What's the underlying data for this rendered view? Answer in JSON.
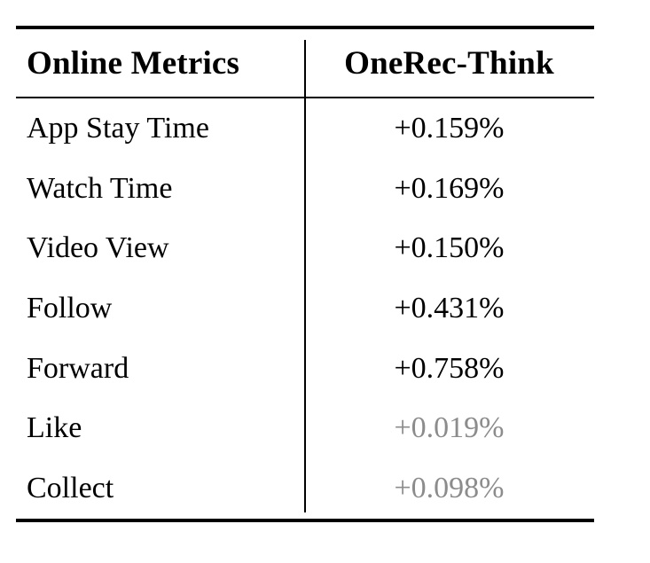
{
  "table": {
    "columns": [
      "Online Metrics",
      "OneRec-Think"
    ],
    "rows": [
      {
        "metric": "App Stay Time",
        "value": "+0.159%",
        "muted": false
      },
      {
        "metric": "Watch Time",
        "value": "+0.169%",
        "muted": false
      },
      {
        "metric": "Video View",
        "value": "+0.150%",
        "muted": false
      },
      {
        "metric": "Follow",
        "value": "+0.431%",
        "muted": false
      },
      {
        "metric": "Forward",
        "value": "+0.758%",
        "muted": false
      },
      {
        "metric": "Like",
        "value": "+0.019%",
        "muted": true
      },
      {
        "metric": "Collect",
        "value": "+0.098%",
        "muted": true
      }
    ]
  },
  "colors": {
    "text": "#000000",
    "muted_value": "#8c8c8c",
    "rule": "#000000",
    "background": "#ffffff"
  },
  "chart_data": {
    "type": "table",
    "columns": [
      "Online Metrics",
      "OneRec-Think"
    ],
    "rows": [
      [
        "App Stay Time",
        "+0.159%"
      ],
      [
        "Watch Time",
        "+0.169%"
      ],
      [
        "Video View",
        "+0.150%"
      ],
      [
        "Follow",
        "+0.431%"
      ],
      [
        "Forward",
        "+0.758%"
      ],
      [
        "Like",
        "+0.019%"
      ],
      [
        "Collect",
        "+0.098%"
      ]
    ],
    "muted_value_rows": [
      "Like",
      "Collect"
    ],
    "legend_position": "none",
    "grid": "booktabs-rules-with-single-vertical-divider"
  }
}
